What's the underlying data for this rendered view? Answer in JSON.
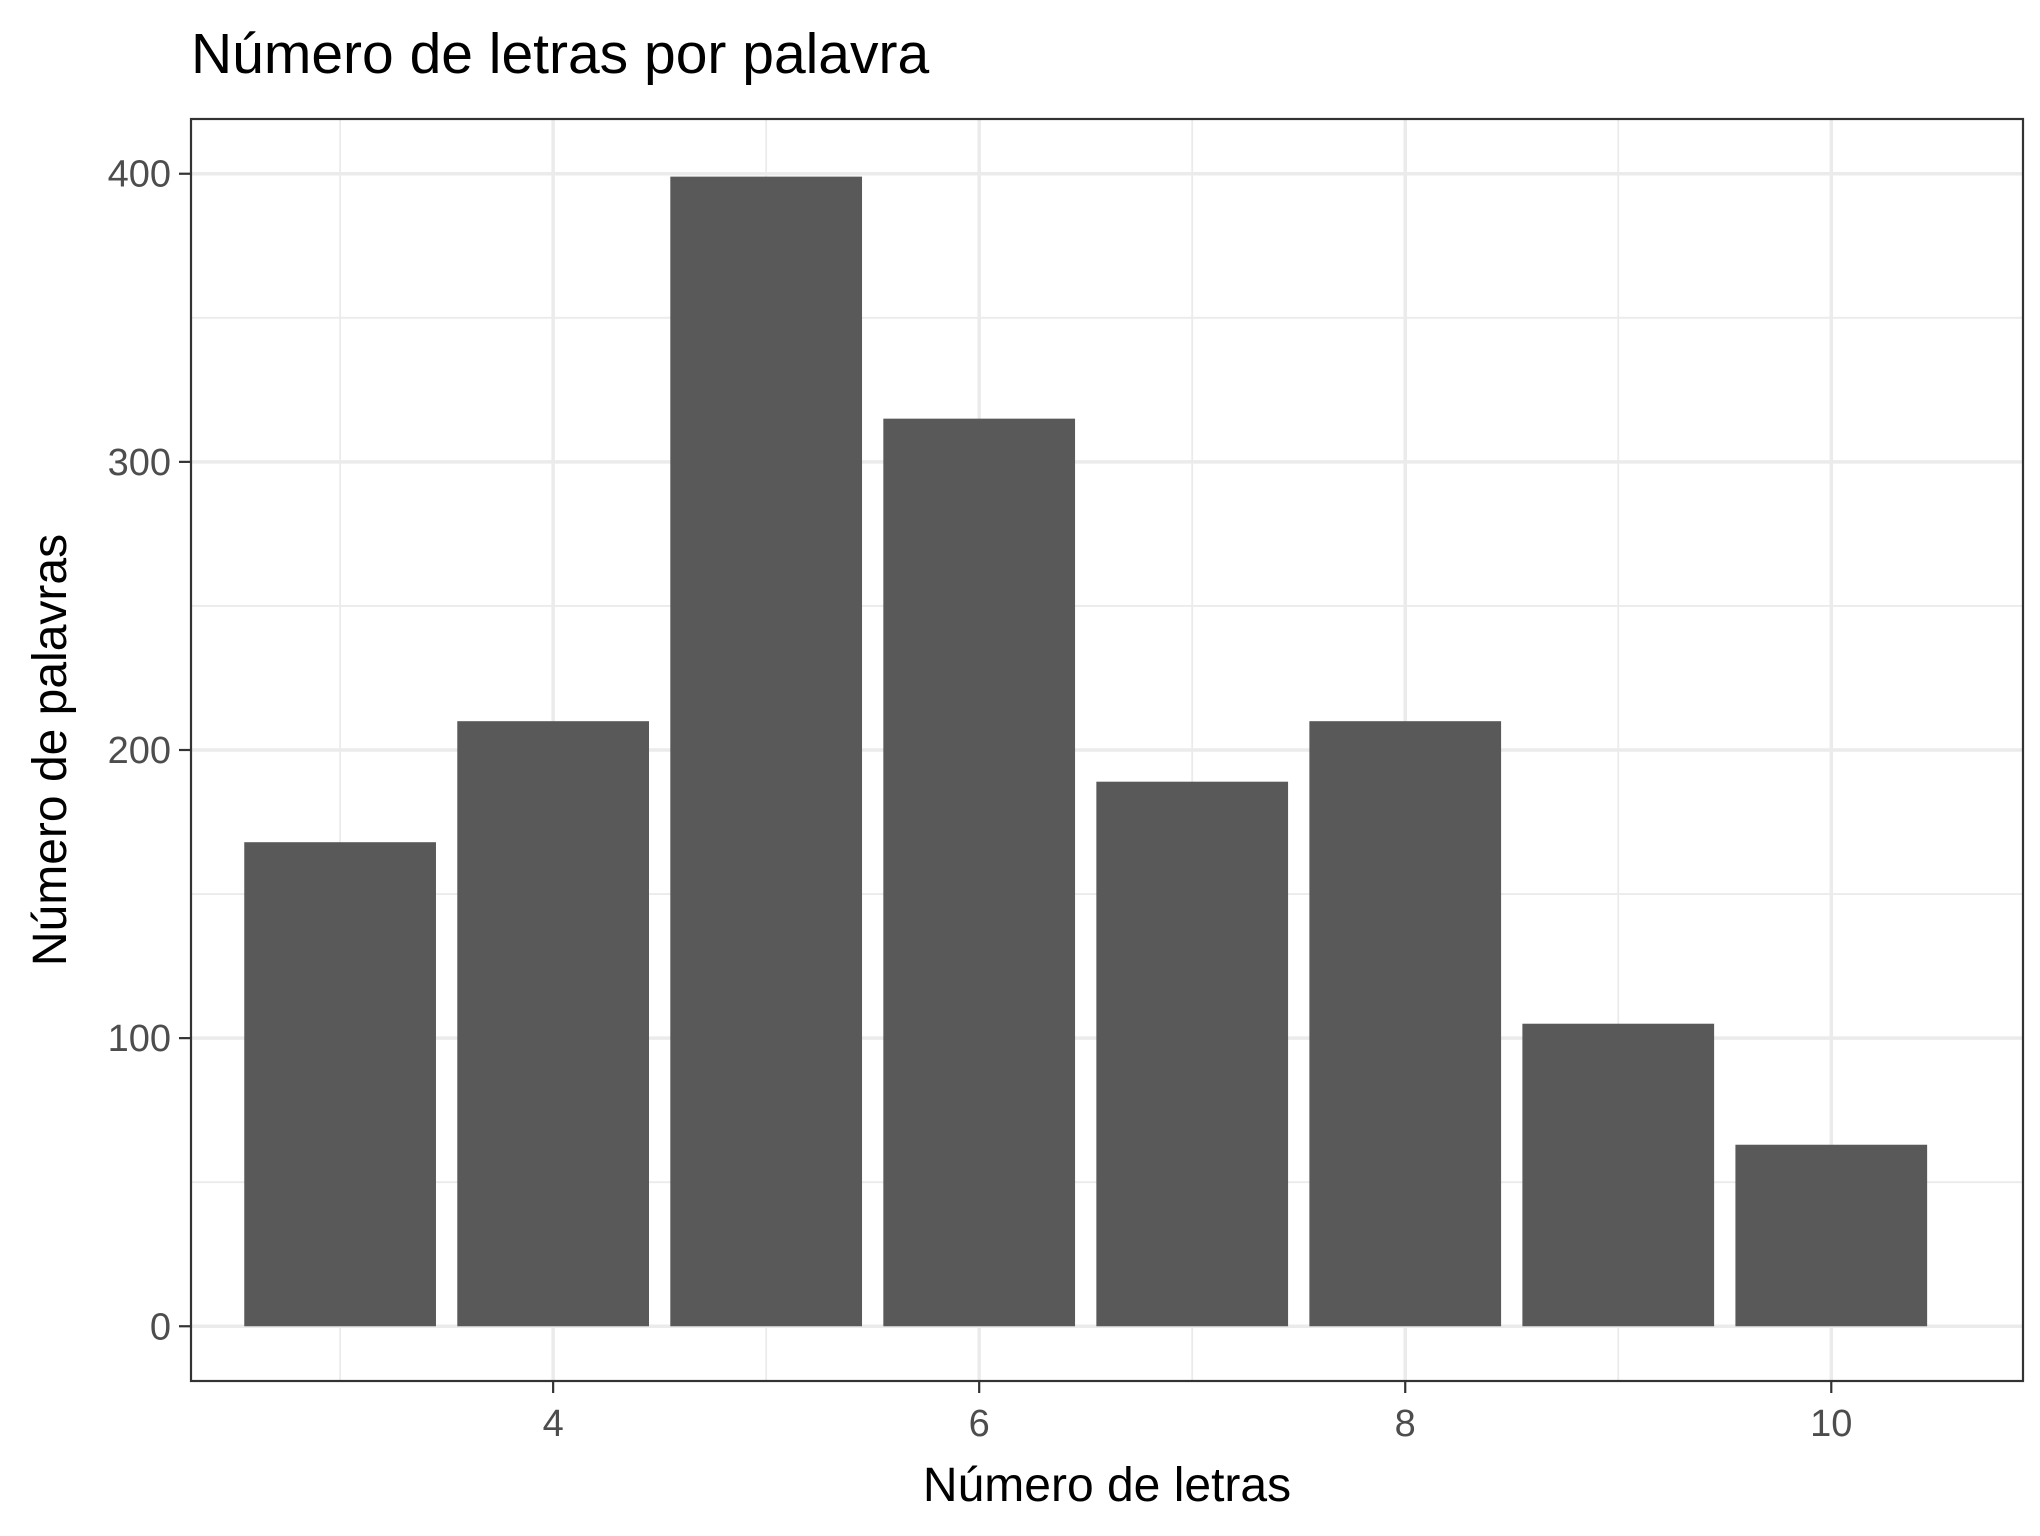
{
  "chart_data": {
    "type": "bar",
    "title": "Número de letras por palavra",
    "xlabel": "Número de letras",
    "ylabel": "Número de palavras",
    "x": [
      3,
      4,
      5,
      6,
      7,
      8,
      9,
      10
    ],
    "values": [
      168,
      210,
      399,
      315,
      189,
      210,
      105,
      63
    ],
    "bar_color": "#595959",
    "xlim": [
      2.3,
      10.9
    ],
    "ylim": [
      -19,
      419
    ],
    "x_ticks": [
      4,
      6,
      8,
      10
    ],
    "x_tick_labels": [
      "4",
      "6",
      "8",
      "10"
    ],
    "x_minor": [
      3,
      5,
      7,
      9
    ],
    "y_ticks": [
      0,
      100,
      200,
      300,
      400
    ],
    "y_tick_labels": [
      "0",
      "100",
      "200",
      "300",
      "400"
    ],
    "y_minor": [
      50,
      150,
      250,
      350
    ],
    "grid": true,
    "legend": "none",
    "theme": "bw"
  }
}
